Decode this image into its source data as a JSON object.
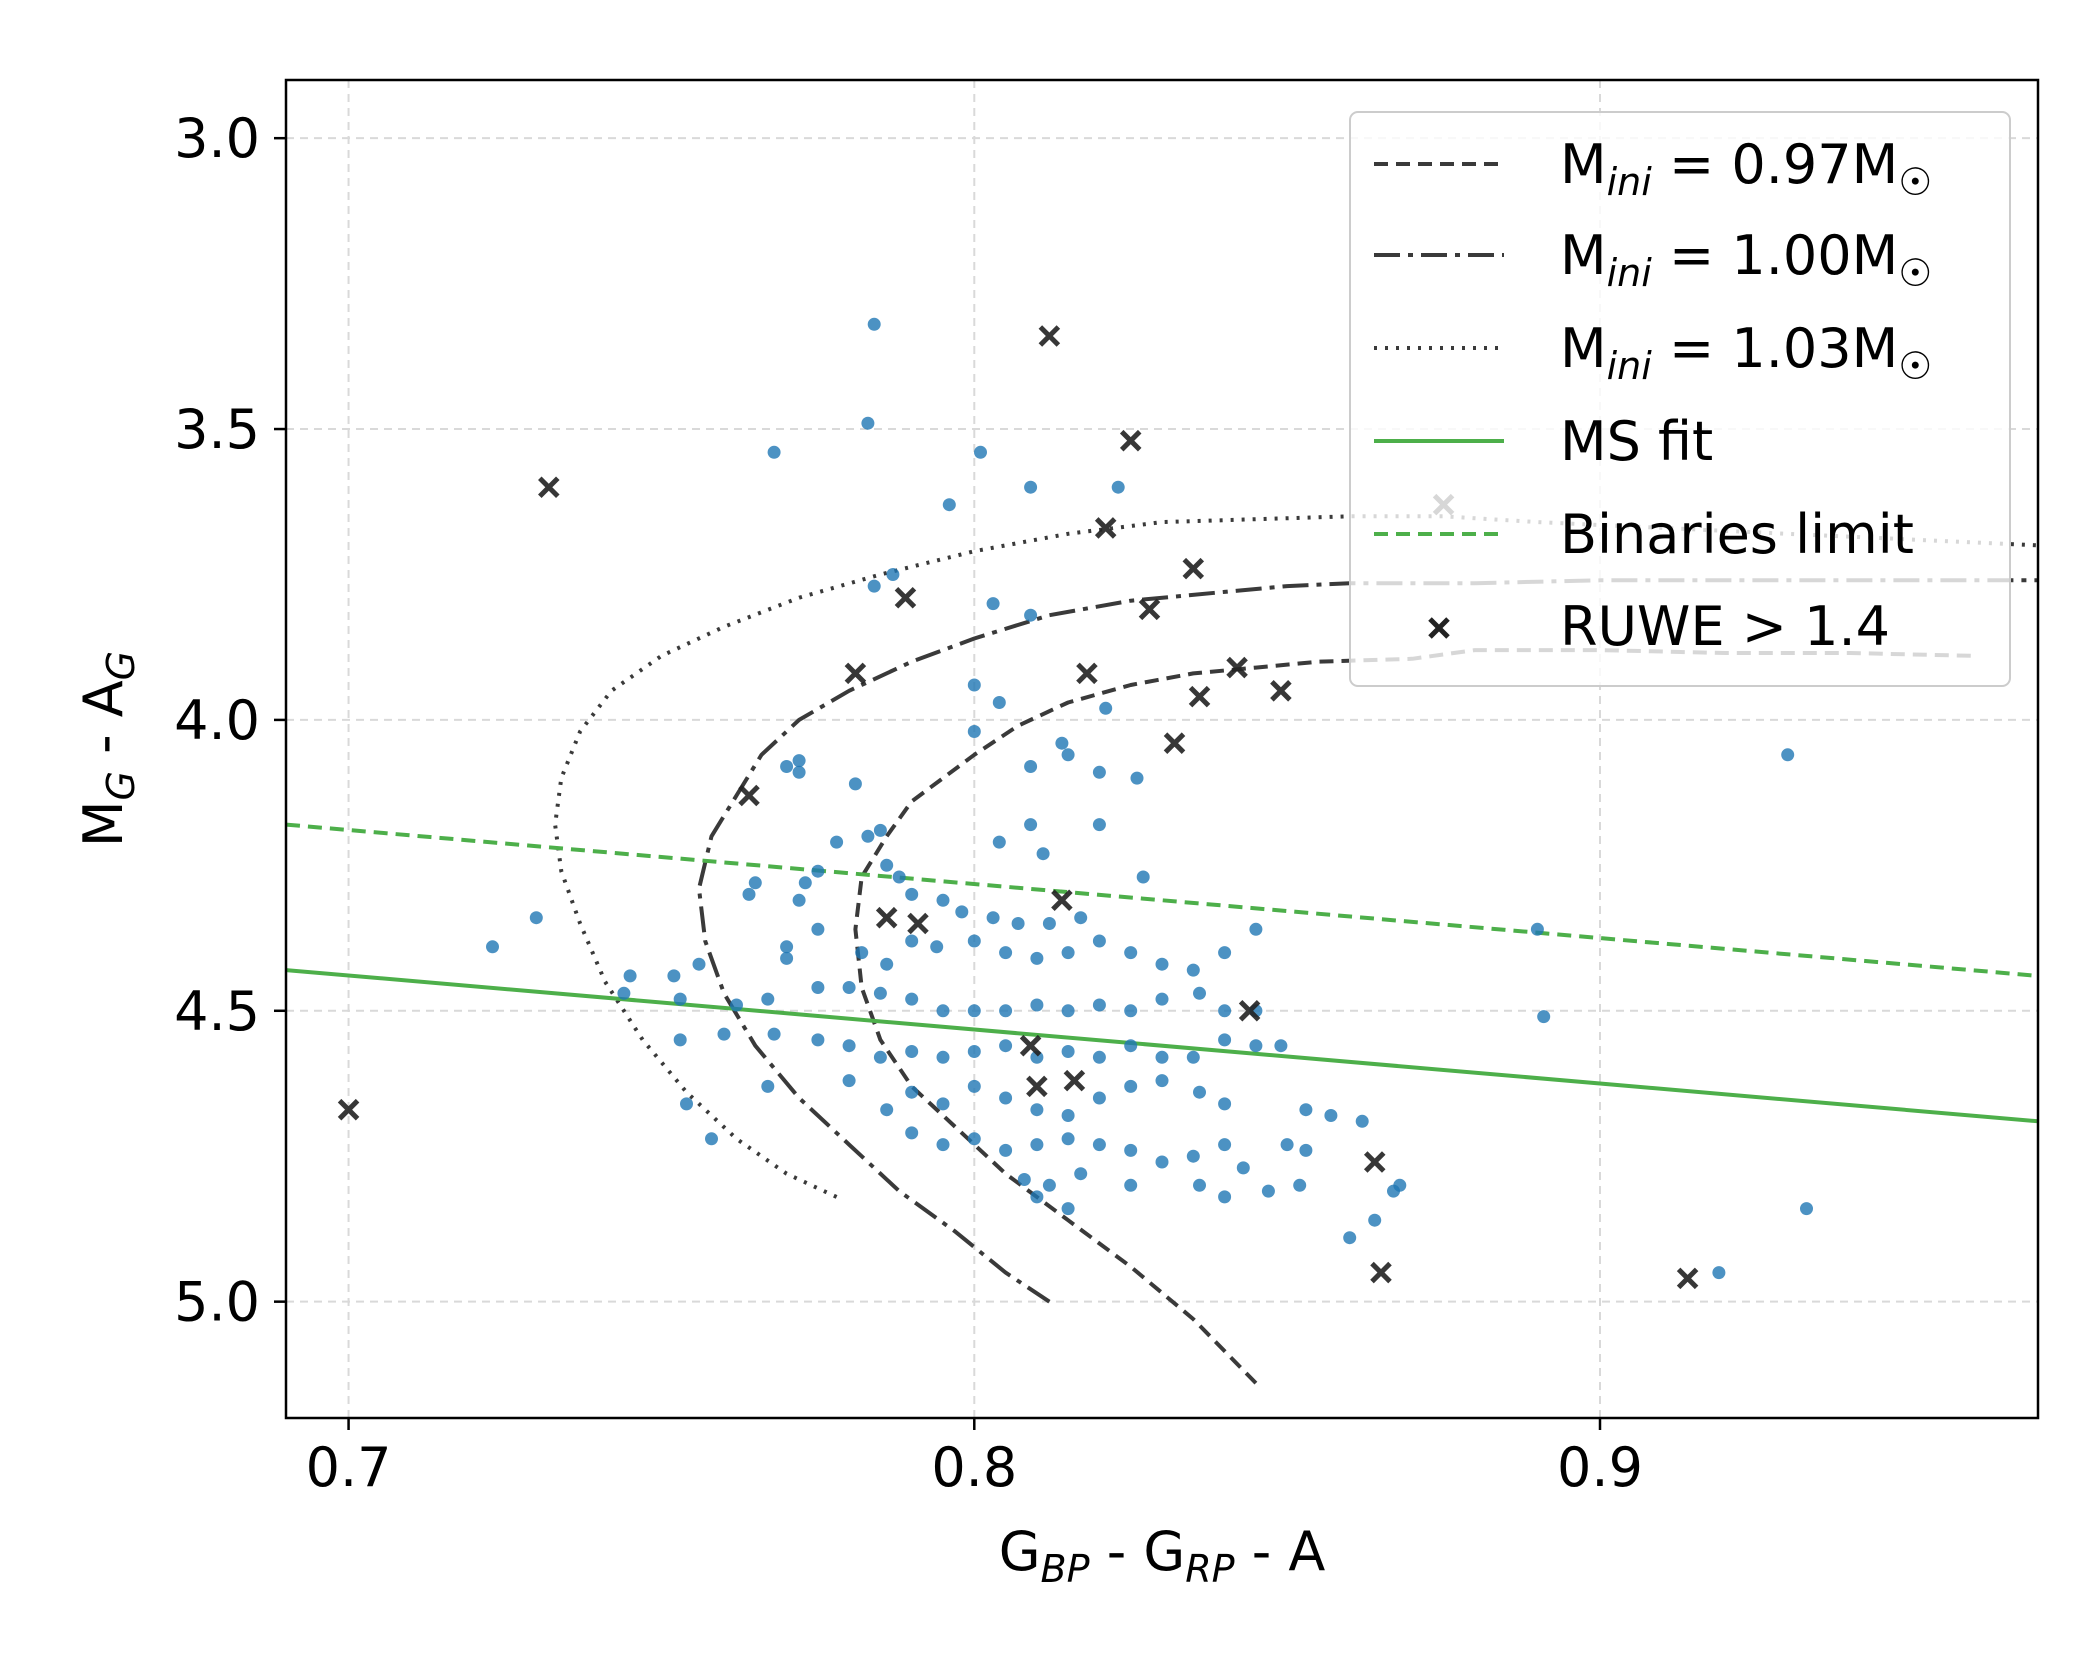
{
  "chart_data": {
    "type": "scatter",
    "xlabel": "G_BP - G_RP - A",
    "ylabel": "M_G - A_G",
    "xlabel_parts": {
      "g1": "G",
      "bp": "BP",
      "mid": " - G",
      "rp": "RP",
      "end": " - A"
    },
    "ylabel_parts": {
      "m": "M",
      "sub_g": "G",
      "mid": " - A",
      "sub_g2": "G"
    },
    "xlim": [
      0.69,
      0.97
    ],
    "ylim": [
      5.2,
      2.9
    ],
    "y_inverted": true,
    "grid": true,
    "xticks": [
      0.7,
      0.8,
      0.9
    ],
    "xtick_labels": [
      "0.7",
      "0.8",
      "0.9"
    ],
    "yticks": [
      3.0,
      3.5,
      4.0,
      4.5,
      5.0
    ],
    "ytick_labels": [
      "3.0",
      "3.5",
      "4.0",
      "4.5",
      "5.0"
    ],
    "legend": {
      "placement": "top-right",
      "entries": [
        {
          "key": "iso097",
          "prefix": "M",
          "sub": "ini",
          "suffix": " = 0.97M",
          "sun": "☉"
        },
        {
          "key": "iso100",
          "prefix": "M",
          "sub": "ini",
          "suffix": " = 1.00M",
          "sun": "☉"
        },
        {
          "key": "iso103",
          "prefix": "M",
          "sub": "ini",
          "suffix": " = 1.03M",
          "sun": "☉"
        },
        {
          "key": "msfit",
          "label": "MS fit"
        },
        {
          "key": "binlimit",
          "label": "Binaries limit"
        },
        {
          "key": "ruwe",
          "label": "RUWE > 1.4"
        }
      ]
    },
    "colors": {
      "scatter": "#1f77b4",
      "isochrone": "#3a3a3a",
      "ms_fit": "#4daf4a",
      "ruwe": "#222222"
    },
    "series": [
      {
        "name": "M_ini = 0.97 M_sun",
        "kind": "line",
        "style": "dashed",
        "x": [
          0.845,
          0.835,
          0.825,
          0.815,
          0.805,
          0.797,
          0.79,
          0.785,
          0.782,
          0.781,
          0.782,
          0.786,
          0.79,
          0.795,
          0.8,
          0.807,
          0.815,
          0.825,
          0.835,
          0.845,
          0.855,
          0.87,
          0.88,
          0.9,
          0.92,
          0.94,
          0.96
        ],
        "y": [
          5.14,
          5.03,
          4.94,
          4.86,
          4.78,
          4.7,
          4.63,
          4.55,
          4.46,
          4.36,
          4.27,
          4.2,
          4.14,
          4.1,
          4.06,
          4.01,
          3.97,
          3.94,
          3.92,
          3.91,
          3.9,
          3.895,
          3.88,
          3.88,
          3.885,
          3.885,
          3.89
        ]
      },
      {
        "name": "M_ini = 1.00 M_sun",
        "kind": "line",
        "style": "dashdot",
        "x": [
          0.812,
          0.805,
          0.797,
          0.788,
          0.78,
          0.772,
          0.765,
          0.76,
          0.757,
          0.756,
          0.758,
          0.762,
          0.766,
          0.772,
          0.78,
          0.79,
          0.8,
          0.812,
          0.825,
          0.84,
          0.85,
          0.86,
          0.87,
          0.88,
          0.9,
          0.92,
          0.94,
          0.97
        ],
        "y": [
          5.0,
          4.95,
          4.88,
          4.81,
          4.73,
          4.65,
          4.56,
          4.47,
          4.38,
          4.29,
          4.2,
          4.13,
          4.06,
          4.0,
          3.95,
          3.9,
          3.86,
          3.82,
          3.795,
          3.78,
          3.77,
          3.765,
          3.765,
          3.765,
          3.76,
          3.76,
          3.76,
          3.76
        ]
      },
      {
        "name": "M_ini = 1.03 M_sun",
        "kind": "line",
        "style": "dotted",
        "x": [
          0.778,
          0.77,
          0.762,
          0.754,
          0.747,
          0.741,
          0.737,
          0.734,
          0.733,
          0.734,
          0.737,
          0.742,
          0.75,
          0.76,
          0.772,
          0.785,
          0.8,
          0.815,
          0.83,
          0.845,
          0.86,
          0.875,
          0.89,
          0.91,
          0.93,
          0.95,
          0.97
        ],
        "y": [
          4.82,
          4.78,
          4.72,
          4.64,
          4.55,
          4.45,
          4.35,
          4.26,
          4.18,
          4.1,
          4.02,
          3.95,
          3.89,
          3.84,
          3.79,
          3.75,
          3.71,
          3.68,
          3.66,
          3.655,
          3.65,
          3.65,
          3.66,
          3.67,
          3.68,
          3.69,
          3.7
        ]
      },
      {
        "name": "MS fit",
        "kind": "line",
        "style": "solid",
        "x": [
          0.69,
          0.97
        ],
        "y": [
          4.43,
          4.69
        ]
      },
      {
        "name": "Binaries limit",
        "kind": "line",
        "style": "dashed",
        "x": [
          0.69,
          0.97
        ],
        "y": [
          4.18,
          4.44
        ]
      },
      {
        "name": "stars",
        "kind": "scatter",
        "marker": "dot",
        "points": [
          [
            0.784,
            3.32
          ],
          [
            0.783,
            3.49
          ],
          [
            0.768,
            3.54
          ],
          [
            0.801,
            3.54
          ],
          [
            0.809,
            3.6
          ],
          [
            0.823,
            3.6
          ],
          [
            0.796,
            3.63
          ],
          [
            0.784,
            3.77
          ],
          [
            0.787,
            3.75
          ],
          [
            0.803,
            3.8
          ],
          [
            0.809,
            3.82
          ],
          [
            0.8,
            3.94
          ],
          [
            0.804,
            3.97
          ],
          [
            0.8,
            4.02
          ],
          [
            0.772,
            4.07
          ],
          [
            0.781,
            4.11
          ],
          [
            0.77,
            4.08
          ],
          [
            0.772,
            4.09
          ],
          [
            0.809,
            4.08
          ],
          [
            0.815,
            4.06
          ],
          [
            0.82,
            4.09
          ],
          [
            0.814,
            4.04
          ],
          [
            0.821,
            3.98
          ],
          [
            0.826,
            4.1
          ],
          [
            0.783,
            4.2
          ],
          [
            0.785,
            4.19
          ],
          [
            0.809,
            4.18
          ],
          [
            0.804,
            4.21
          ],
          [
            0.811,
            4.23
          ],
          [
            0.82,
            4.18
          ],
          [
            0.778,
            4.21
          ],
          [
            0.775,
            4.26
          ],
          [
            0.773,
            4.28
          ],
          [
            0.772,
            4.31
          ],
          [
            0.765,
            4.28
          ],
          [
            0.764,
            4.3
          ],
          [
            0.786,
            4.25
          ],
          [
            0.788,
            4.27
          ],
          [
            0.79,
            4.3
          ],
          [
            0.795,
            4.31
          ],
          [
            0.798,
            4.33
          ],
          [
            0.803,
            4.34
          ],
          [
            0.807,
            4.35
          ],
          [
            0.812,
            4.35
          ],
          [
            0.817,
            4.34
          ],
          [
            0.827,
            4.27
          ],
          [
            0.775,
            4.36
          ],
          [
            0.77,
            4.39
          ],
          [
            0.77,
            4.41
          ],
          [
            0.782,
            4.4
          ],
          [
            0.786,
            4.42
          ],
          [
            0.79,
            4.38
          ],
          [
            0.794,
            4.39
          ],
          [
            0.8,
            4.38
          ],
          [
            0.805,
            4.4
          ],
          [
            0.81,
            4.41
          ],
          [
            0.815,
            4.4
          ],
          [
            0.82,
            4.38
          ],
          [
            0.825,
            4.4
          ],
          [
            0.83,
            4.42
          ],
          [
            0.835,
            4.43
          ],
          [
            0.84,
            4.4
          ],
          [
            0.845,
            4.36
          ],
          [
            0.756,
            4.42
          ],
          [
            0.752,
            4.44
          ],
          [
            0.745,
            4.44
          ],
          [
            0.744,
            4.47
          ],
          [
            0.753,
            4.48
          ],
          [
            0.762,
            4.49
          ],
          [
            0.767,
            4.48
          ],
          [
            0.775,
            4.46
          ],
          [
            0.78,
            4.46
          ],
          [
            0.785,
            4.47
          ],
          [
            0.79,
            4.48
          ],
          [
            0.795,
            4.5
          ],
          [
            0.8,
            4.5
          ],
          [
            0.805,
            4.5
          ],
          [
            0.81,
            4.49
          ],
          [
            0.815,
            4.5
          ],
          [
            0.82,
            4.49
          ],
          [
            0.825,
            4.5
          ],
          [
            0.83,
            4.48
          ],
          [
            0.836,
            4.47
          ],
          [
            0.84,
            4.5
          ],
          [
            0.845,
            4.5
          ],
          [
            0.753,
            4.55
          ],
          [
            0.76,
            4.54
          ],
          [
            0.768,
            4.54
          ],
          [
            0.775,
            4.55
          ],
          [
            0.78,
            4.56
          ],
          [
            0.785,
            4.58
          ],
          [
            0.79,
            4.57
          ],
          [
            0.795,
            4.58
          ],
          [
            0.8,
            4.57
          ],
          [
            0.805,
            4.56
          ],
          [
            0.81,
            4.58
          ],
          [
            0.815,
            4.57
          ],
          [
            0.82,
            4.58
          ],
          [
            0.825,
            4.56
          ],
          [
            0.83,
            4.58
          ],
          [
            0.835,
            4.58
          ],
          [
            0.84,
            4.55
          ],
          [
            0.845,
            4.56
          ],
          [
            0.849,
            4.56
          ],
          [
            0.754,
            4.66
          ],
          [
            0.767,
            4.63
          ],
          [
            0.78,
            4.62
          ],
          [
            0.786,
            4.67
          ],
          [
            0.79,
            4.64
          ],
          [
            0.795,
            4.66
          ],
          [
            0.8,
            4.63
          ],
          [
            0.805,
            4.65
          ],
          [
            0.81,
            4.67
          ],
          [
            0.815,
            4.68
          ],
          [
            0.82,
            4.65
          ],
          [
            0.825,
            4.63
          ],
          [
            0.83,
            4.62
          ],
          [
            0.836,
            4.64
          ],
          [
            0.84,
            4.66
          ],
          [
            0.853,
            4.67
          ],
          [
            0.857,
            4.68
          ],
          [
            0.862,
            4.69
          ],
          [
            0.758,
            4.72
          ],
          [
            0.79,
            4.71
          ],
          [
            0.795,
            4.73
          ],
          [
            0.8,
            4.72
          ],
          [
            0.805,
            4.74
          ],
          [
            0.81,
            4.73
          ],
          [
            0.815,
            4.72
          ],
          [
            0.82,
            4.73
          ],
          [
            0.825,
            4.74
          ],
          [
            0.83,
            4.76
          ],
          [
            0.835,
            4.75
          ],
          [
            0.84,
            4.73
          ],
          [
            0.843,
            4.77
          ],
          [
            0.85,
            4.73
          ],
          [
            0.808,
            4.79
          ],
          [
            0.812,
            4.8
          ],
          [
            0.817,
            4.78
          ],
          [
            0.825,
            4.8
          ],
          [
            0.836,
            4.8
          ],
          [
            0.84,
            4.82
          ],
          [
            0.847,
            4.81
          ],
          [
            0.852,
            4.8
          ],
          [
            0.853,
            4.74
          ],
          [
            0.81,
            4.82
          ],
          [
            0.815,
            4.84
          ],
          [
            0.868,
            4.8
          ],
          [
            0.867,
            4.81
          ],
          [
            0.864,
            4.86
          ],
          [
            0.86,
            4.89
          ],
          [
            0.723,
            4.39
          ],
          [
            0.73,
            4.34
          ],
          [
            0.89,
            4.36
          ],
          [
            0.891,
            4.51
          ],
          [
            0.93,
            4.06
          ],
          [
            0.933,
            4.84
          ],
          [
            0.919,
            4.95
          ]
        ]
      },
      {
        "name": "RUWE > 1.4",
        "kind": "scatter",
        "marker": "x",
        "points": [
          [
            0.812,
            3.34
          ],
          [
            0.825,
            3.52
          ],
          [
            0.732,
            3.6
          ],
          [
            0.821,
            3.67
          ],
          [
            0.875,
            3.63
          ],
          [
            0.835,
            3.74
          ],
          [
            0.789,
            3.79
          ],
          [
            0.828,
            3.81
          ],
          [
            0.781,
            3.92
          ],
          [
            0.818,
            3.92
          ],
          [
            0.842,
            3.91
          ],
          [
            0.836,
            3.96
          ],
          [
            0.849,
            3.95
          ],
          [
            0.832,
            4.04
          ],
          [
            0.764,
            4.13
          ],
          [
            0.814,
            4.31
          ],
          [
            0.786,
            4.34
          ],
          [
            0.791,
            4.35
          ],
          [
            0.844,
            4.5
          ],
          [
            0.809,
            4.56
          ],
          [
            0.81,
            4.63
          ],
          [
            0.816,
            4.62
          ],
          [
            0.7,
            4.67
          ],
          [
            0.864,
            4.76
          ],
          [
            0.865,
            4.95
          ],
          [
            0.914,
            4.96
          ]
        ]
      }
    ]
  }
}
